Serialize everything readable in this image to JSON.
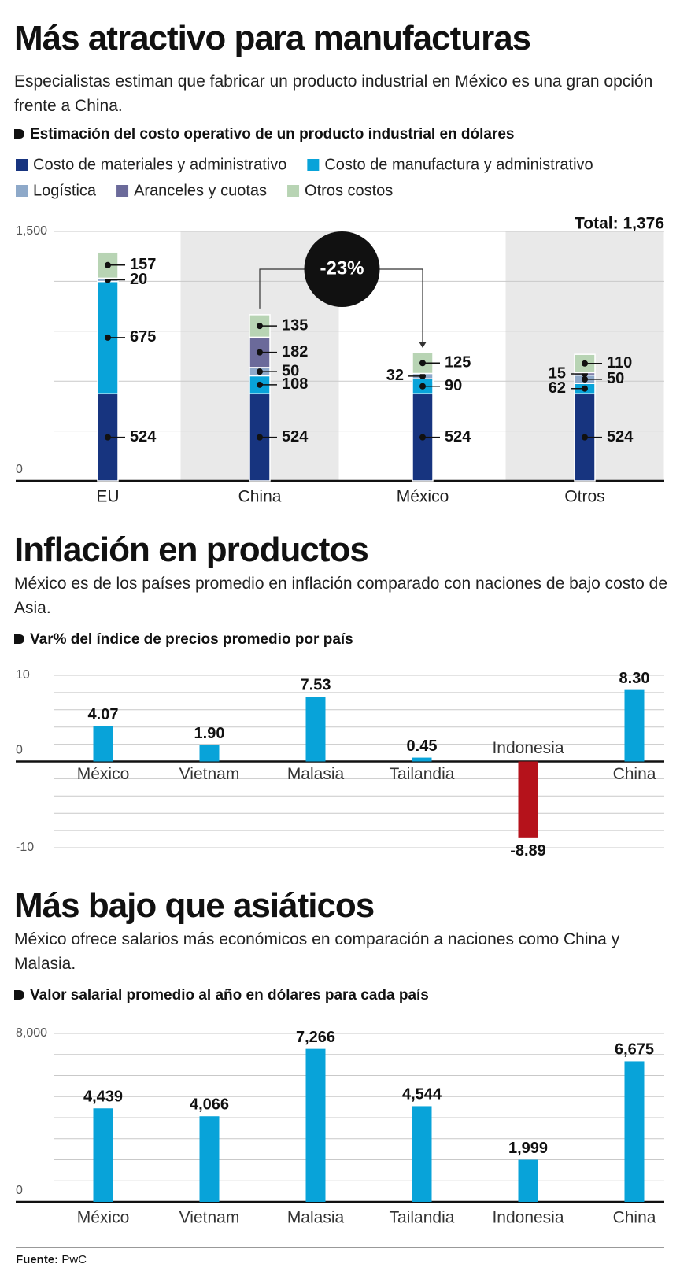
{
  "chart_data": [
    {
      "type": "stacked_bar",
      "title": "Más atractivo para manufacturas",
      "subtitle": "Especialistas estiman que fabricar un producto industrial en México es una gran opción frente a China.",
      "label": "Estimación del costo operativo de un producto industrial en dólares",
      "categories": [
        "EU",
        "China",
        "México",
        "Otros"
      ],
      "series": [
        {
          "name": "Costo de materiales y administrativo",
          "color": "#17347f",
          "values": [
            524,
            524,
            524,
            524
          ]
        },
        {
          "name": "Costo de manufactura y administrativo",
          "color": "#08a3d9",
          "values": [
            675,
            108,
            90,
            62
          ]
        },
        {
          "name": "Logística",
          "color": "#8ea9c9",
          "values": [
            20,
            50,
            32,
            50
          ]
        },
        {
          "name": "Aranceles y cuotas",
          "color": "#6b6a9a",
          "values": [
            null,
            182,
            null,
            15
          ]
        },
        {
          "name": "Otros costos",
          "color": "#b8d4b4",
          "values": [
            157,
            135,
            125,
            110
          ]
        }
      ],
      "ylim": [
        0,
        1500
      ],
      "yticks": [
        0,
        {
          "value": 300,
          "label": null
        },
        {
          "value": 600,
          "label": null
        },
        {
          "value": 900,
          "label": null
        },
        {
          "value": 1200,
          "label": null
        },
        {
          "value": 1500,
          "label": "1,500"
        }
      ],
      "grid": true,
      "annotations": [
        {
          "text": "Total: 1,376"
        },
        {
          "text": "-23%"
        }
      ]
    },
    {
      "type": "bar",
      "title": "Inflación en productos",
      "subtitle": "México es de los países promedio en inflación comparado con naciones de bajo costo de Asia.",
      "label": "Var% del índice de precios promedio por país",
      "categories": [
        "México",
        "Vietnam",
        "Malasia",
        "Tailandia",
        "Indonesia",
        "China"
      ],
      "values": [
        4.07,
        1.9,
        7.53,
        0.45,
        -8.89,
        8.3
      ],
      "value_labels": [
        "4.07",
        "1.90",
        "7.53",
        "0.45",
        "-8.89",
        "8.30"
      ],
      "colors": [
        "#08a3d9",
        "#08a3d9",
        "#08a3d9",
        "#08a3d9",
        "#b5121b",
        "#08a3d9"
      ],
      "ylim": [
        -10,
        10
      ],
      "yticks": [
        -10,
        {
          "value": -8,
          "label": null
        },
        {
          "value": -6,
          "label": null
        },
        {
          "value": -4,
          "label": null
        },
        {
          "value": -2,
          "label": null
        },
        0,
        {
          "value": 2,
          "label": null
        },
        {
          "value": 4,
          "label": null
        },
        {
          "value": 6,
          "label": null
        },
        {
          "value": 8,
          "label": null
        },
        10
      ],
      "grid": true
    },
    {
      "type": "bar",
      "title": "Más bajo que asiáticos",
      "subtitle": "México ofrece salarios más económicos en comparación a naciones como China y Malasia.",
      "label": "Valor salarial promedio al año en dólares para cada país",
      "categories": [
        "México",
        "Vietnam",
        "Malasia",
        "Tailandia",
        "Indonesia",
        "China"
      ],
      "values": [
        4439,
        4066,
        7266,
        4544,
        1999,
        6675
      ],
      "value_labels": [
        "4,439",
        "4,066",
        "7,266",
        "4,544",
        "1,999",
        "6,675"
      ],
      "color": "#08a3d9",
      "ylim": [
        0,
        8000
      ],
      "yticks": [
        0,
        {
          "value": 1000,
          "label": null
        },
        {
          "value": 2000,
          "label": null
        },
        {
          "value": 3000,
          "label": null
        },
        {
          "value": 4000,
          "label": null
        },
        {
          "value": 5000,
          "label": null
        },
        {
          "value": 6000,
          "label": null
        },
        {
          "value": 7000,
          "label": null
        },
        {
          "value": 8000,
          "label": "8,000"
        }
      ],
      "grid": true
    }
  ],
  "source_label": "Fuente:",
  "source": "PwC"
}
